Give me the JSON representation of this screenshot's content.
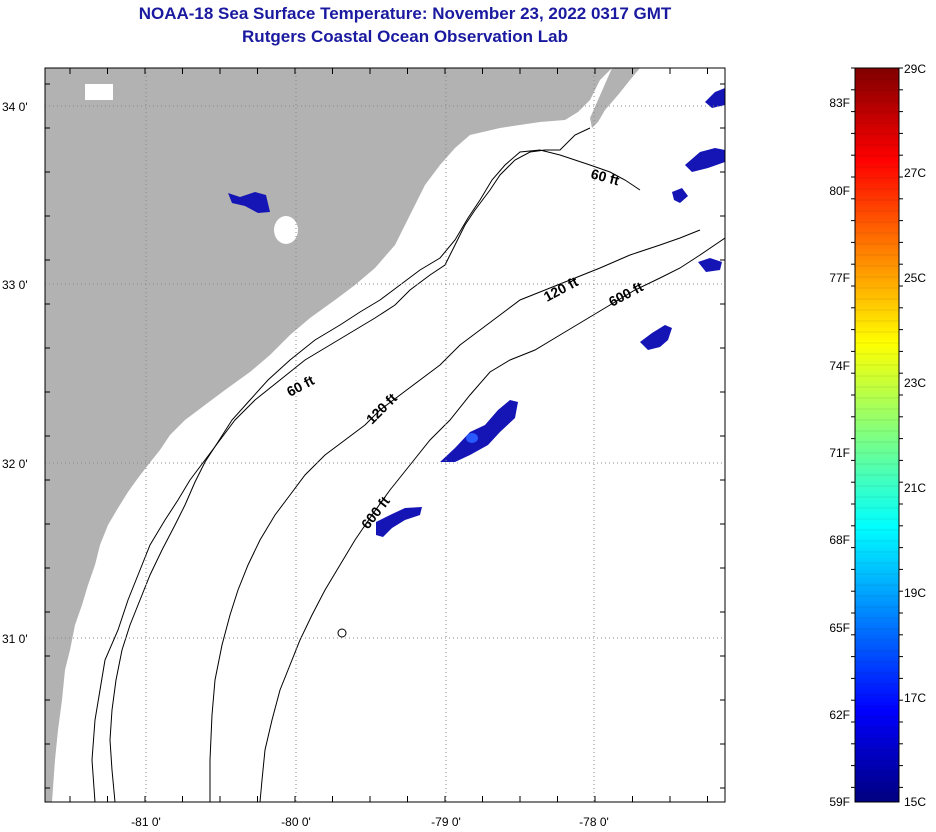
{
  "header": {
    "title": "NOAA-18 Sea Surface Temperature:  November 23, 2022 0317 GMT",
    "subtitle": "Rutgers Coastal Ocean Observation Lab"
  },
  "map": {
    "lat_labels": [
      "34 0'",
      "33 0'",
      "32 0'",
      "31 0'"
    ],
    "lon_labels": [
      "-81 0'",
      "-80 0'",
      "-79 0'",
      "-78 0'"
    ],
    "land_color": "#b2b2b2",
    "ocean_color": "#ffffff",
    "contours": [
      {
        "label": "60 ft",
        "where": "north"
      },
      {
        "label": "60 ft",
        "where": "south"
      },
      {
        "label": "120 ft",
        "where": "north"
      },
      {
        "label": "120 ft",
        "where": "south"
      },
      {
        "label": "600 ft",
        "where": "north"
      },
      {
        "label": "600 ft",
        "where": "south"
      }
    ]
  },
  "colorbar": {
    "fahrenheit_labels": [
      "83F",
      "80F",
      "77F",
      "74F",
      "71F",
      "68F",
      "65F",
      "62F",
      "59F"
    ],
    "celsius_labels": [
      "29C",
      "27C",
      "25C",
      "23C",
      "21C",
      "19C",
      "17C",
      "15C"
    ],
    "colors": [
      "#000080",
      "#0000ff",
      "#0080ff",
      "#00ffff",
      "#80ff80",
      "#ffff00",
      "#ff8000",
      "#ff0000",
      "#800000"
    ]
  }
}
